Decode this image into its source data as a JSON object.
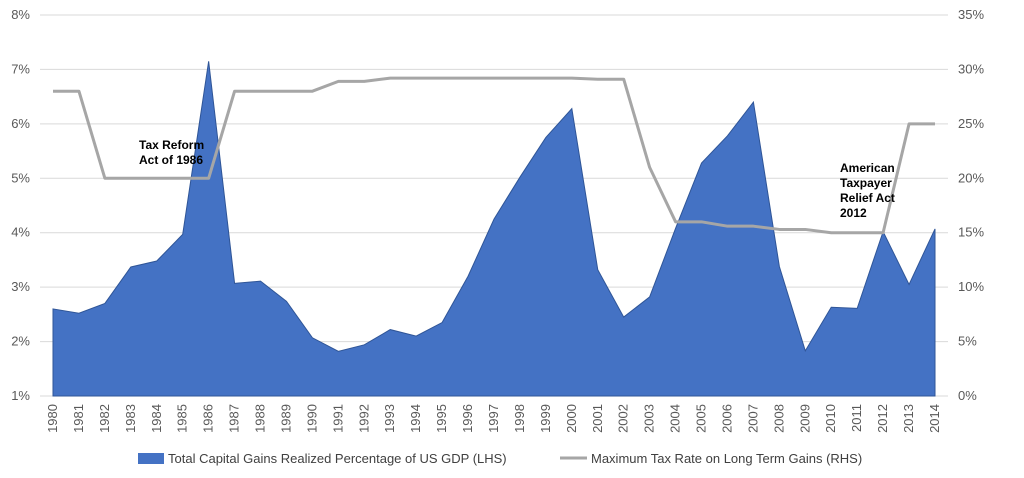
{
  "chart_data": {
    "type": "area",
    "x": [
      "1980",
      "1981",
      "1982",
      "1983",
      "1984",
      "1985",
      "1986",
      "1987",
      "1988",
      "1989",
      "1990",
      "1991",
      "1992",
      "1993",
      "1994",
      "1995",
      "1996",
      "1997",
      "1998",
      "1999",
      "2000",
      "2001",
      "2002",
      "2003",
      "2004",
      "2005",
      "2006",
      "2007",
      "2008",
      "2009",
      "2010",
      "2011",
      "2012",
      "2013",
      "2014"
    ],
    "series": [
      {
        "name": "Total Capital Gains Realized Percentage of US GDP (LHS)",
        "type": "area",
        "axis": "left",
        "color": "#4472C4",
        "values": [
          2.6,
          2.52,
          2.7,
          3.37,
          3.48,
          3.97,
          7.15,
          3.07,
          3.11,
          2.74,
          2.07,
          1.82,
          1.94,
          2.22,
          2.1,
          2.35,
          3.2,
          4.25,
          5.02,
          5.75,
          6.28,
          3.32,
          2.45,
          2.82,
          4.08,
          5.28,
          5.78,
          6.4,
          3.38,
          1.83,
          2.63,
          2.61,
          4.02,
          3.05,
          4.07
        ]
      },
      {
        "name": "Maximum Tax Rate on Long Term Gains (RHS)",
        "type": "line",
        "axis": "right",
        "color": "#A6A6A6",
        "values": [
          28,
          28,
          20,
          20,
          20,
          20,
          20,
          28,
          28,
          28,
          28,
          28.9,
          28.9,
          29.2,
          29.2,
          29.2,
          29.2,
          29.2,
          29.2,
          29.2,
          29.2,
          29.1,
          29.1,
          21,
          16,
          16,
          15.6,
          15.6,
          15.3,
          15.3,
          15,
          15,
          15,
          25,
          25
        ]
      }
    ],
    "y_left": {
      "min": 1,
      "max": 8,
      "ticks": [
        "1%",
        "2%",
        "3%",
        "4%",
        "5%",
        "6%",
        "7%",
        "8%"
      ]
    },
    "y_right": {
      "min": 0,
      "max": 35,
      "ticks": [
        "0%",
        "5%",
        "10%",
        "15%",
        "20%",
        "25%",
        "30%",
        "35%"
      ]
    },
    "annotations": [
      {
        "lines": [
          "Tax Reform",
          "Act of 1986"
        ],
        "x": "1986"
      },
      {
        "lines": [
          "American",
          "Taxpayer",
          "Relief Act",
          "2012"
        ],
        "x": "2012"
      }
    ],
    "grid": true,
    "legend": "bottom"
  }
}
